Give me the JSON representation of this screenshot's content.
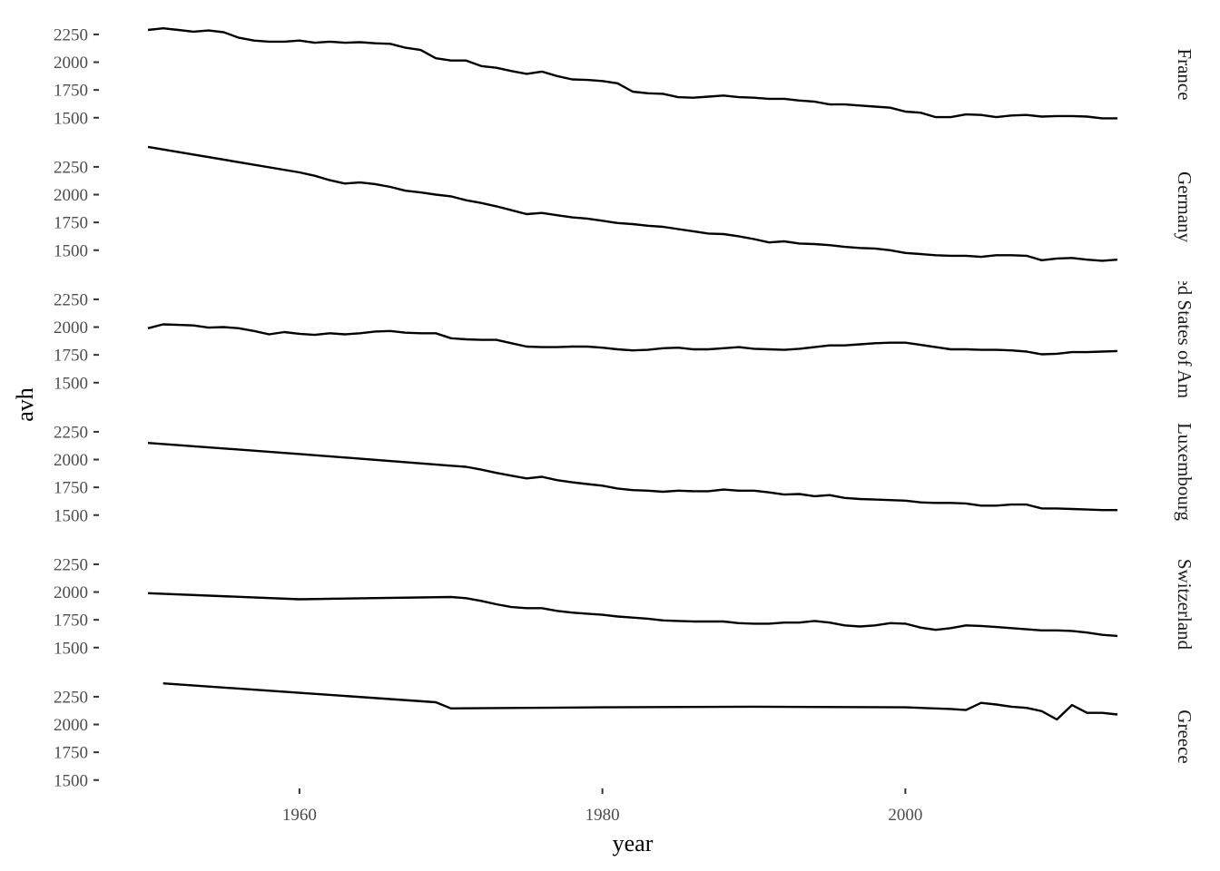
{
  "chart_data": {
    "type": "line",
    "layout": "faceted-rows",
    "xlabel": "year",
    "ylabel": "avh",
    "xlim": [
      1950,
      2014
    ],
    "ylim": [
      1400,
      2380
    ],
    "x_ticks": [
      1960,
      1980,
      2000
    ],
    "y_ticks": [
      1500,
      1750,
      2000,
      2250
    ],
    "line_color": "#000000",
    "grid": false,
    "panels": [
      {
        "strip_label": "France",
        "x": [
          1950,
          1951,
          1952,
          1953,
          1954,
          1955,
          1956,
          1957,
          1958,
          1959,
          1960,
          1961,
          1962,
          1963,
          1964,
          1965,
          1966,
          1967,
          1968,
          1969,
          1970,
          1971,
          1972,
          1973,
          1974,
          1975,
          1976,
          1977,
          1978,
          1979,
          1980,
          1981,
          1982,
          1983,
          1984,
          1985,
          1986,
          1987,
          1988,
          1989,
          1990,
          1991,
          1992,
          1993,
          1994,
          1995,
          1996,
          1997,
          1998,
          1999,
          2000,
          2001,
          2002,
          2003,
          2004,
          2005,
          2006,
          2007,
          2008,
          2009,
          2010,
          2011,
          2012,
          2013,
          2014
        ],
        "y": [
          2290,
          2305,
          2290,
          2275,
          2285,
          2270,
          2220,
          2195,
          2185,
          2185,
          2195,
          2175,
          2185,
          2175,
          2180,
          2170,
          2165,
          2130,
          2110,
          2035,
          2015,
          2015,
          1965,
          1950,
          1920,
          1895,
          1915,
          1875,
          1845,
          1840,
          1830,
          1810,
          1735,
          1720,
          1715,
          1685,
          1680,
          1690,
          1700,
          1685,
          1680,
          1670,
          1670,
          1655,
          1645,
          1620,
          1620,
          1610,
          1600,
          1590,
          1555,
          1545,
          1505,
          1505,
          1530,
          1525,
          1505,
          1520,
          1525,
          1510,
          1515,
          1515,
          1510,
          1495,
          1495
        ]
      },
      {
        "strip_label": "Germany",
        "x": [
          1950,
          1960,
          1961,
          1962,
          1963,
          1964,
          1965,
          1966,
          1967,
          1968,
          1969,
          1970,
          1971,
          1972,
          1973,
          1974,
          1975,
          1976,
          1977,
          1978,
          1979,
          1980,
          1981,
          1982,
          1983,
          1984,
          1985,
          1986,
          1987,
          1988,
          1989,
          1990,
          1991,
          1992,
          1993,
          1994,
          1995,
          1996,
          1997,
          1998,
          1999,
          2000,
          2001,
          2002,
          2003,
          2004,
          2005,
          2006,
          2007,
          2008,
          2009,
          2010,
          2011,
          2012,
          2013,
          2014
        ],
        "y": [
          2430,
          2200,
          2170,
          2130,
          2100,
          2110,
          2095,
          2070,
          2035,
          2020,
          2000,
          1985,
          1950,
          1925,
          1895,
          1860,
          1825,
          1835,
          1815,
          1795,
          1785,
          1765,
          1745,
          1735,
          1720,
          1710,
          1690,
          1670,
          1650,
          1645,
          1625,
          1600,
          1570,
          1580,
          1560,
          1555,
          1545,
          1530,
          1520,
          1515,
          1500,
          1475,
          1465,
          1455,
          1450,
          1450,
          1440,
          1455,
          1455,
          1450,
          1410,
          1425,
          1430,
          1415,
          1405,
          1415
        ]
      },
      {
        "strip_label": "United States of America",
        "x": [
          1950,
          1951,
          1952,
          1953,
          1954,
          1955,
          1956,
          1957,
          1958,
          1959,
          1960,
          1961,
          1962,
          1963,
          1964,
          1965,
          1966,
          1967,
          1968,
          1969,
          1970,
          1971,
          1972,
          1973,
          1974,
          1975,
          1976,
          1977,
          1978,
          1979,
          1980,
          1981,
          1982,
          1983,
          1984,
          1985,
          1986,
          1987,
          1988,
          1989,
          1990,
          1991,
          1992,
          1993,
          1994,
          1995,
          1996,
          1997,
          1998,
          1999,
          2000,
          2001,
          2002,
          2003,
          2004,
          2005,
          2006,
          2007,
          2008,
          2009,
          2010,
          2011,
          2012,
          2013,
          2014
        ],
        "y": [
          1990,
          2025,
          2020,
          2015,
          1995,
          2000,
          1990,
          1965,
          1935,
          1955,
          1940,
          1930,
          1945,
          1935,
          1945,
          1960,
          1965,
          1950,
          1945,
          1945,
          1900,
          1890,
          1885,
          1885,
          1855,
          1825,
          1820,
          1820,
          1825,
          1825,
          1815,
          1800,
          1790,
          1795,
          1810,
          1815,
          1800,
          1800,
          1810,
          1820,
          1805,
          1800,
          1795,
          1805,
          1820,
          1835,
          1835,
          1845,
          1855,
          1860,
          1860,
          1840,
          1820,
          1800,
          1800,
          1795,
          1795,
          1790,
          1780,
          1755,
          1760,
          1775,
          1775,
          1780,
          1785
        ]
      },
      {
        "strip_label": "Luxembourg",
        "x": [
          1950,
          1960,
          1970,
          1971,
          1972,
          1973,
          1974,
          1975,
          1976,
          1977,
          1978,
          1979,
          1980,
          1981,
          1982,
          1983,
          1984,
          1985,
          1986,
          1987,
          1988,
          1989,
          1990,
          1991,
          1992,
          1993,
          1994,
          1995,
          1996,
          1997,
          1998,
          1999,
          2000,
          2001,
          2002,
          2003,
          2004,
          2005,
          2006,
          2007,
          2008,
          2009,
          2010,
          2011,
          2012,
          2013,
          2014
        ],
        "y": [
          2150,
          2050,
          1945,
          1935,
          1910,
          1880,
          1855,
          1830,
          1845,
          1815,
          1795,
          1780,
          1765,
          1740,
          1725,
          1720,
          1710,
          1720,
          1715,
          1715,
          1730,
          1720,
          1720,
          1705,
          1685,
          1690,
          1670,
          1680,
          1655,
          1645,
          1640,
          1635,
          1630,
          1615,
          1610,
          1610,
          1605,
          1585,
          1585,
          1595,
          1595,
          1560,
          1560,
          1555,
          1550,
          1545,
          1545
        ]
      },
      {
        "strip_label": "Switzerland",
        "x": [
          1950,
          1960,
          1970,
          1971,
          1972,
          1973,
          1974,
          1975,
          1976,
          1977,
          1978,
          1979,
          1980,
          1981,
          1982,
          1983,
          1984,
          1985,
          1986,
          1987,
          1988,
          1989,
          1990,
          1991,
          1992,
          1993,
          1994,
          1995,
          1996,
          1997,
          1998,
          1999,
          2000,
          2001,
          2002,
          2003,
          2004,
          2005,
          2006,
          2007,
          2008,
          2009,
          2010,
          2011,
          2012,
          2013,
          2014
        ],
        "y": [
          1990,
          1935,
          1955,
          1945,
          1920,
          1890,
          1865,
          1855,
          1855,
          1830,
          1815,
          1805,
          1795,
          1780,
          1770,
          1760,
          1745,
          1740,
          1735,
          1735,
          1735,
          1720,
          1715,
          1715,
          1725,
          1725,
          1740,
          1725,
          1700,
          1690,
          1700,
          1720,
          1715,
          1680,
          1660,
          1675,
          1700,
          1695,
          1685,
          1675,
          1665,
          1655,
          1655,
          1650,
          1635,
          1615,
          1605
        ]
      },
      {
        "strip_label": "Greece",
        "x": [
          1951,
          1969,
          1970,
          1980,
          1990,
          2000,
          2003,
          2004,
          2005,
          2006,
          2007,
          2008,
          2009,
          2010,
          2011,
          2012,
          2013,
          2014
        ],
        "y": [
          2370,
          2200,
          2145,
          2155,
          2160,
          2155,
          2140,
          2130,
          2195,
          2180,
          2160,
          2150,
          2120,
          2045,
          2175,
          2105,
          2105,
          2090
        ]
      }
    ]
  }
}
